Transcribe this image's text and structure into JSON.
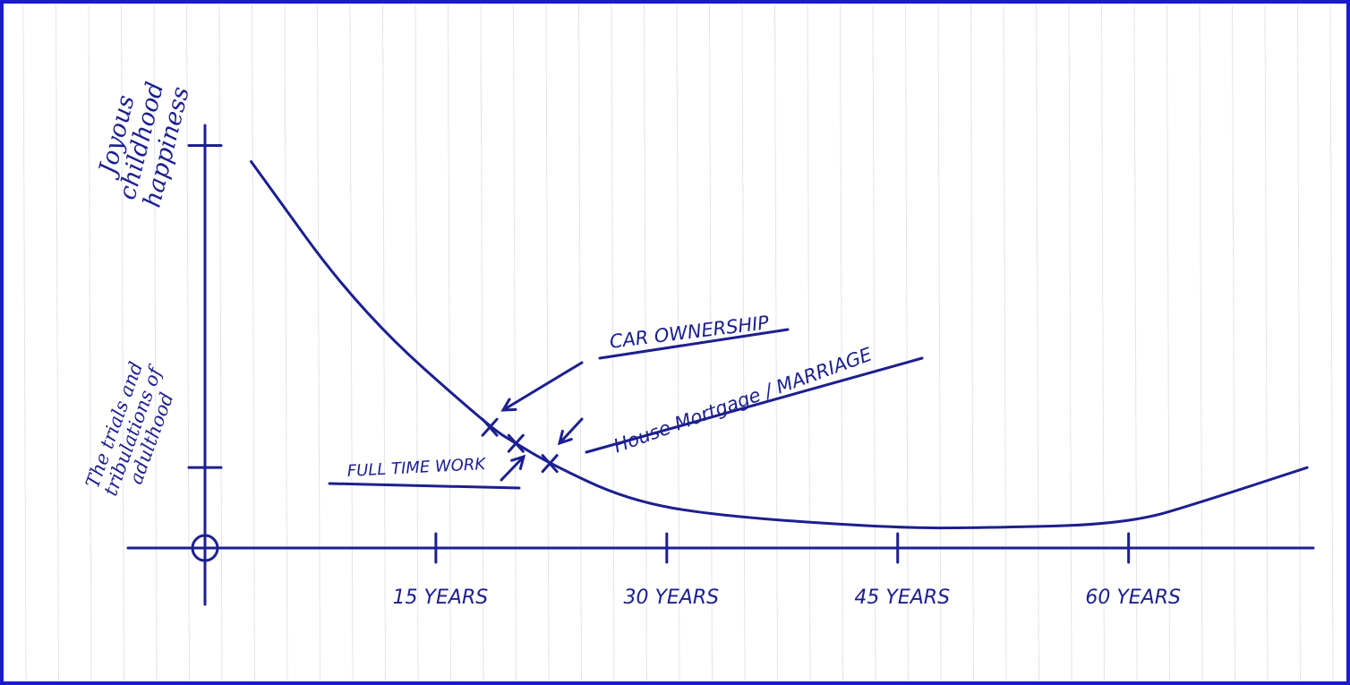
{
  "chart_data": {
    "type": "line",
    "x": [
      3,
      10,
      18.5,
      20.2,
      22.4,
      27.4,
      33.2,
      44.8,
      50.6,
      60,
      65.2,
      71.6
    ],
    "values": [
      96,
      59,
      30,
      26,
      21,
      12,
      8,
      5,
      5,
      6,
      12,
      20
    ],
    "color": "#1c1f8f",
    "xlim": [
      -5,
      72
    ],
    "xticks": [
      {
        "value": 15,
        "label": "15 YEARS"
      },
      {
        "value": 30,
        "label": "30 YEARS"
      },
      {
        "value": 45,
        "label": "45 YEARS"
      },
      {
        "value": 60,
        "label": "60 YEARS"
      }
    ],
    "ylim": [
      -14,
      105
    ],
    "yticks": [
      {
        "value": 100,
        "label": "Joyous childhood happiness"
      },
      {
        "value": 20,
        "label": "The trials and tribulations of adulthood"
      }
    ],
    "annotations": [
      {
        "text": "CAR OWNERSHIP",
        "x": 18.5,
        "y": 30
      },
      {
        "text": "FULL TIME WORK",
        "x": 20.2,
        "y": 26
      },
      {
        "text": "House Mortgage / MARRIAGE",
        "x": 22.4,
        "y": 21
      }
    ]
  }
}
